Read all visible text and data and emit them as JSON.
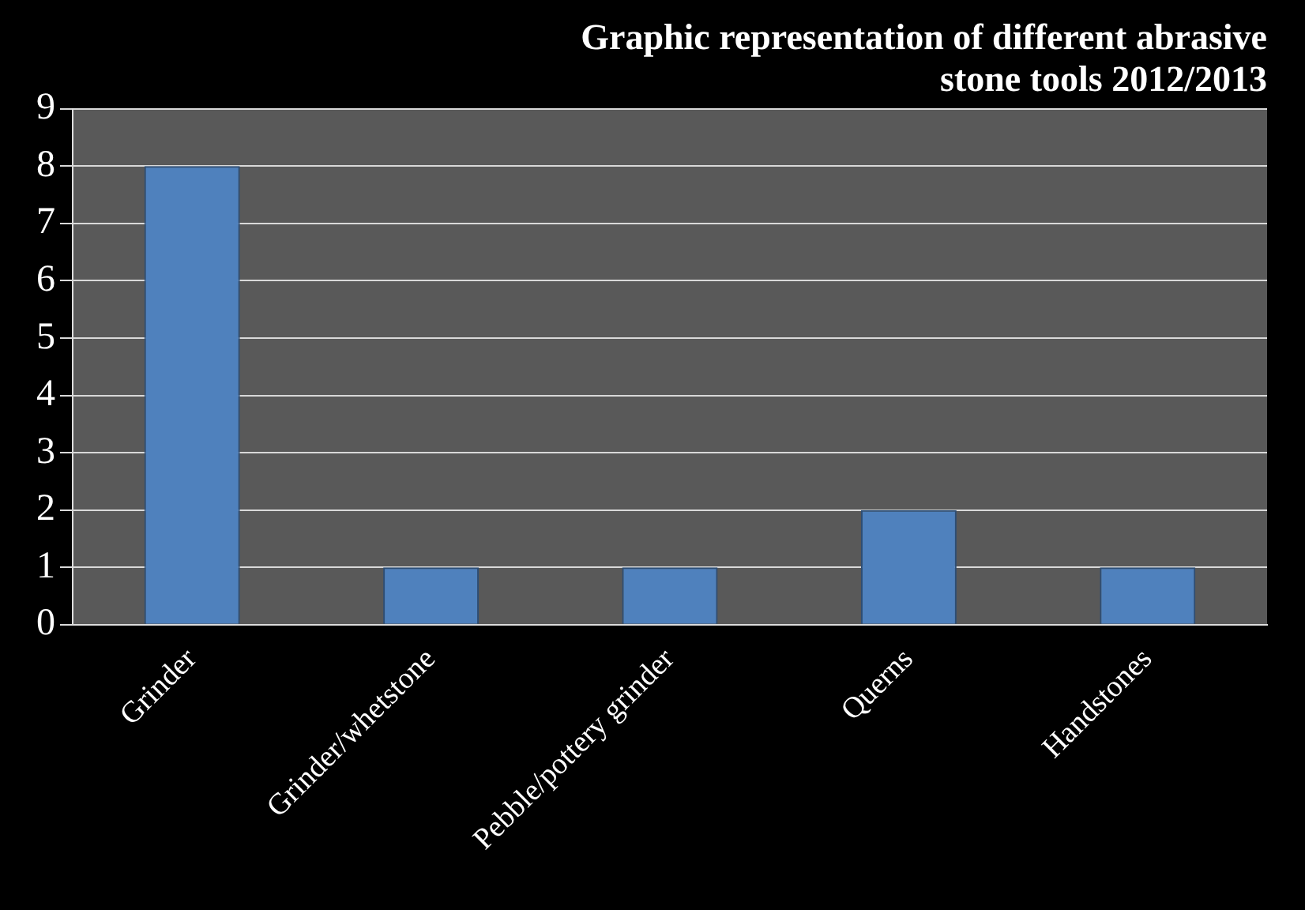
{
  "chart_data": {
    "type": "bar",
    "title": "Graphic representation of different abrasive stone tools 2012/2013",
    "categories": [
      "Grinder",
      "Grinder/whetstone",
      "Pebble/pottery grinder",
      "Querns",
      "Handstones"
    ],
    "values": [
      8,
      1,
      1,
      2,
      1
    ],
    "color": "#4f81bd",
    "ylim": [
      0,
      9
    ],
    "yticks": [
      0,
      1,
      2,
      3,
      4,
      5,
      6,
      7,
      8,
      9
    ],
    "grid": "y"
  }
}
